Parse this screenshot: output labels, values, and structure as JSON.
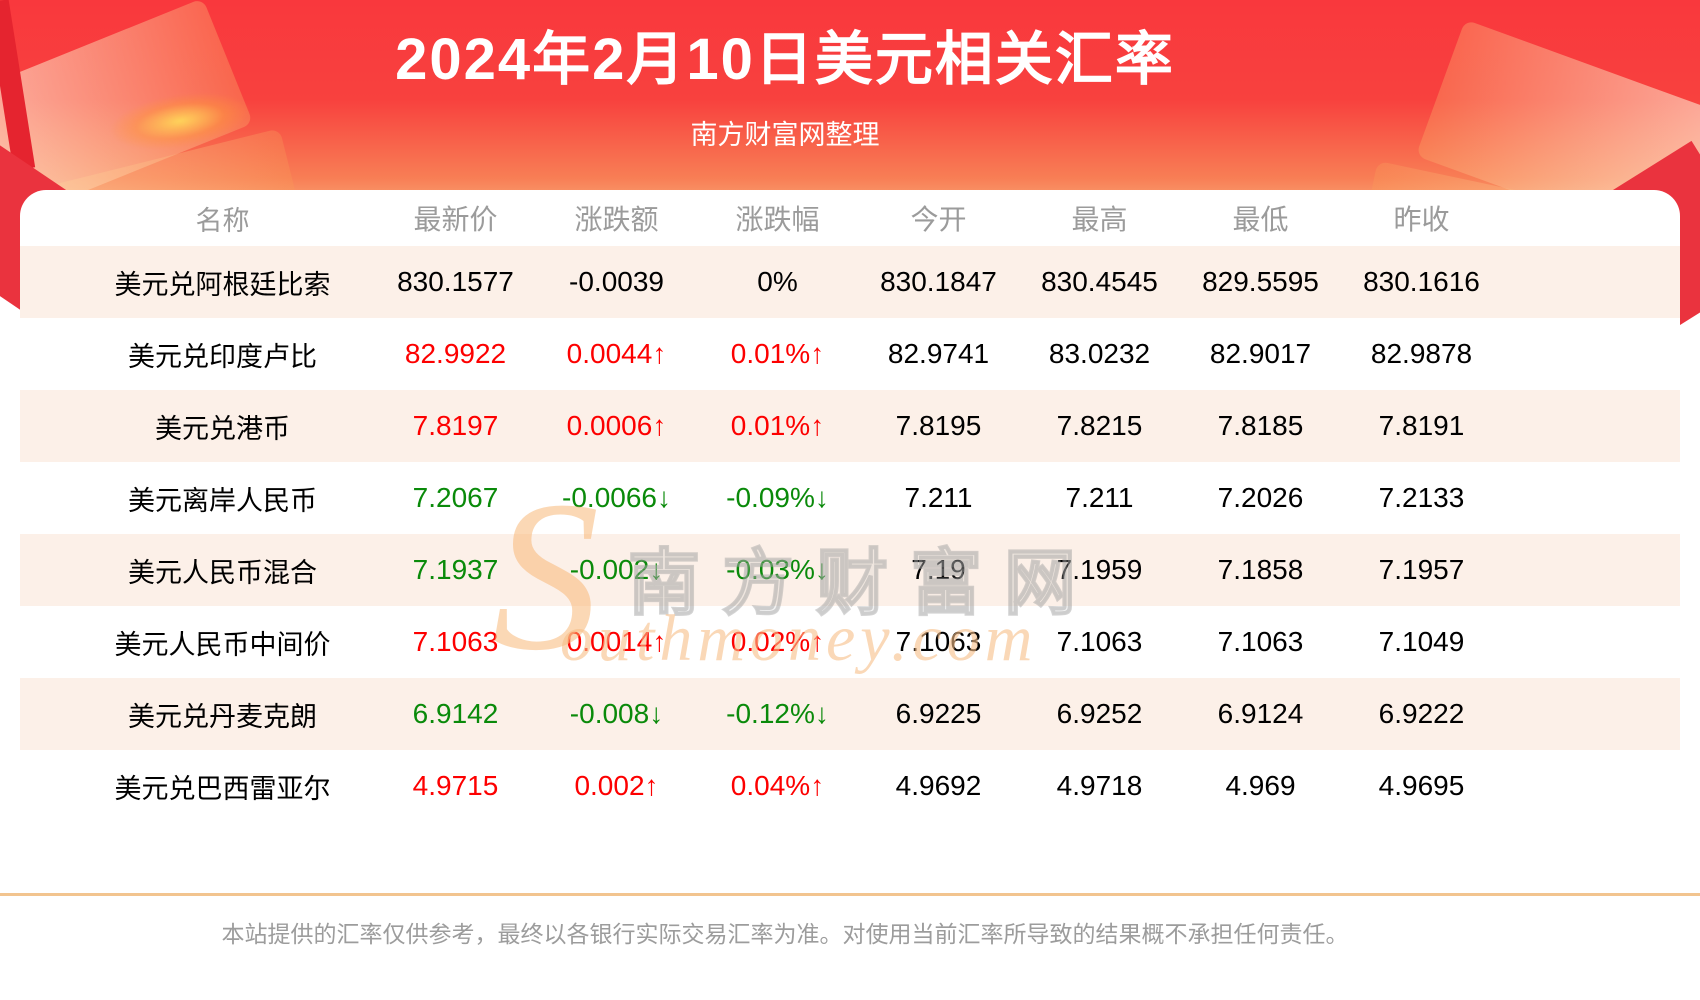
{
  "header": {
    "title": "2024年2月10日美元相关汇率",
    "subtitle": "南方财富网整理"
  },
  "table": {
    "columns": [
      "名称",
      "最新价",
      "涨跌额",
      "涨跌幅",
      "今开",
      "最高",
      "最低",
      "昨收"
    ],
    "rows": [
      {
        "name": "美元兑阿根廷比索",
        "latest": "830.1577",
        "change": "-0.0039",
        "pct": "0%",
        "open": "830.1847",
        "high": "830.4545",
        "low": "829.5595",
        "prev": "830.1616",
        "trend": "flat"
      },
      {
        "name": "美元兑印度卢比",
        "latest": "82.9922",
        "change": "0.0044↑",
        "pct": "0.01%↑",
        "open": "82.9741",
        "high": "83.0232",
        "low": "82.9017",
        "prev": "82.9878",
        "trend": "up"
      },
      {
        "name": "美元兑港币",
        "latest": "7.8197",
        "change": "0.0006↑",
        "pct": "0.01%↑",
        "open": "7.8195",
        "high": "7.8215",
        "low": "7.8185",
        "prev": "7.8191",
        "trend": "up"
      },
      {
        "name": "美元离岸人民币",
        "latest": "7.2067",
        "change": "-0.0066↓",
        "pct": "-0.09%↓",
        "open": "7.211",
        "high": "7.211",
        "low": "7.2026",
        "prev": "7.2133",
        "trend": "down"
      },
      {
        "name": "美元人民币混合",
        "latest": "7.1937",
        "change": "-0.002↓",
        "pct": "-0.03%↓",
        "open": "7.19",
        "high": "7.1959",
        "low": "7.1858",
        "prev": "7.1957",
        "trend": "down"
      },
      {
        "name": "美元人民币中间价",
        "latest": "7.1063",
        "change": "0.0014↑",
        "pct": "0.02%↑",
        "open": "7.1063",
        "high": "7.1063",
        "low": "7.1063",
        "prev": "7.1049",
        "trend": "up"
      },
      {
        "name": "美元兑丹麦克朗",
        "latest": "6.9142",
        "change": "-0.008↓",
        "pct": "-0.12%↓",
        "open": "6.9225",
        "high": "6.9252",
        "low": "6.9124",
        "prev": "6.9222",
        "trend": "down"
      },
      {
        "name": "美元兑巴西雷亚尔",
        "latest": "4.9715",
        "change": "0.002↑",
        "pct": "0.04%↑",
        "open": "4.9692",
        "high": "4.9718",
        "low": "4.969",
        "prev": "4.9695",
        "trend": "up"
      }
    ]
  },
  "watermark": {
    "initial": "S",
    "cn": "南方财富网",
    "en": "outhmoney.com"
  },
  "footer": {
    "disclaimer": "本站提供的汇率仅供参考，最终以各银行实际交易汇率为准。对使用当前汇率所导致的结果概不承担任何责任。"
  },
  "colors": {
    "up_red": "#fd0000",
    "down_green": "#0a8a0a",
    "neutral": "#000000",
    "banner_red": "#f9383d",
    "banner_peach": "#fde0bb",
    "row_alt_bg": "#fcf0e8",
    "divider": "#f2c48f",
    "header_text": "#9b9b9b"
  }
}
